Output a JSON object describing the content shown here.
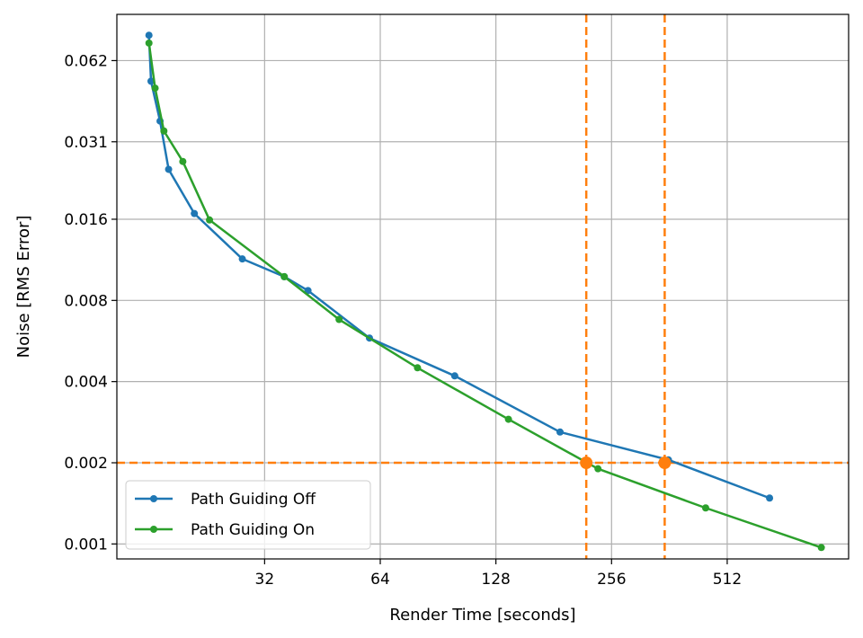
{
  "chart_data": {
    "type": "line",
    "title": "",
    "xlabel": "Render Time [seconds]",
    "ylabel": "Noise [RMS Error]",
    "xscale": "log2",
    "yscale": "log2",
    "xlim": [
      13.2,
      1060
    ],
    "ylim": [
      0.00088,
      0.092
    ],
    "xticks": [
      32,
      64,
      128,
      256,
      512
    ],
    "xtick_labels": [
      "32",
      "64",
      "128",
      "256",
      "512"
    ],
    "yticks": [
      0.001,
      0.002,
      0.004,
      0.008,
      0.016,
      0.031,
      0.062
    ],
    "ytick_labels": [
      "0.001",
      "0.002",
      "0.004",
      "0.008",
      "0.016",
      "0.031",
      "0.062"
    ],
    "grid": true,
    "legend_position": "lower-left",
    "series": [
      {
        "name": "Path Guiding Off",
        "color": "#1f77b4",
        "x": [
          16.0,
          16.2,
          17.1,
          18.0,
          21.0,
          28.0,
          36.0,
          41.5,
          60.0,
          100.0,
          188.0,
          360.0,
          660.0
        ],
        "y": [
          0.077,
          0.052,
          0.037,
          0.0245,
          0.0168,
          0.0114,
          0.0098,
          0.0087,
          0.0058,
          0.0042,
          0.0026,
          0.00205,
          0.00148
        ]
      },
      {
        "name": "Path Guiding On",
        "color": "#2ca02c",
        "x": [
          16.0,
          16.6,
          17.5,
          19.6,
          23.0,
          36.0,
          50.0,
          80.0,
          138.0,
          236.0,
          450.0,
          900.0
        ],
        "y": [
          0.072,
          0.049,
          0.034,
          0.0262,
          0.0159,
          0.0098,
          0.0068,
          0.0045,
          0.0029,
          0.0019,
          0.00136,
          0.00097
        ]
      }
    ],
    "reference_lines": {
      "color": "#ff7f0e",
      "style": "dashed",
      "horizontal_y": [
        0.002
      ],
      "vertical_x": [
        220,
        352
      ]
    },
    "markers": {
      "color": "#ff7f0e",
      "points": [
        {
          "x": 220,
          "y": 0.002
        },
        {
          "x": 352,
          "y": 0.002
        }
      ]
    }
  }
}
